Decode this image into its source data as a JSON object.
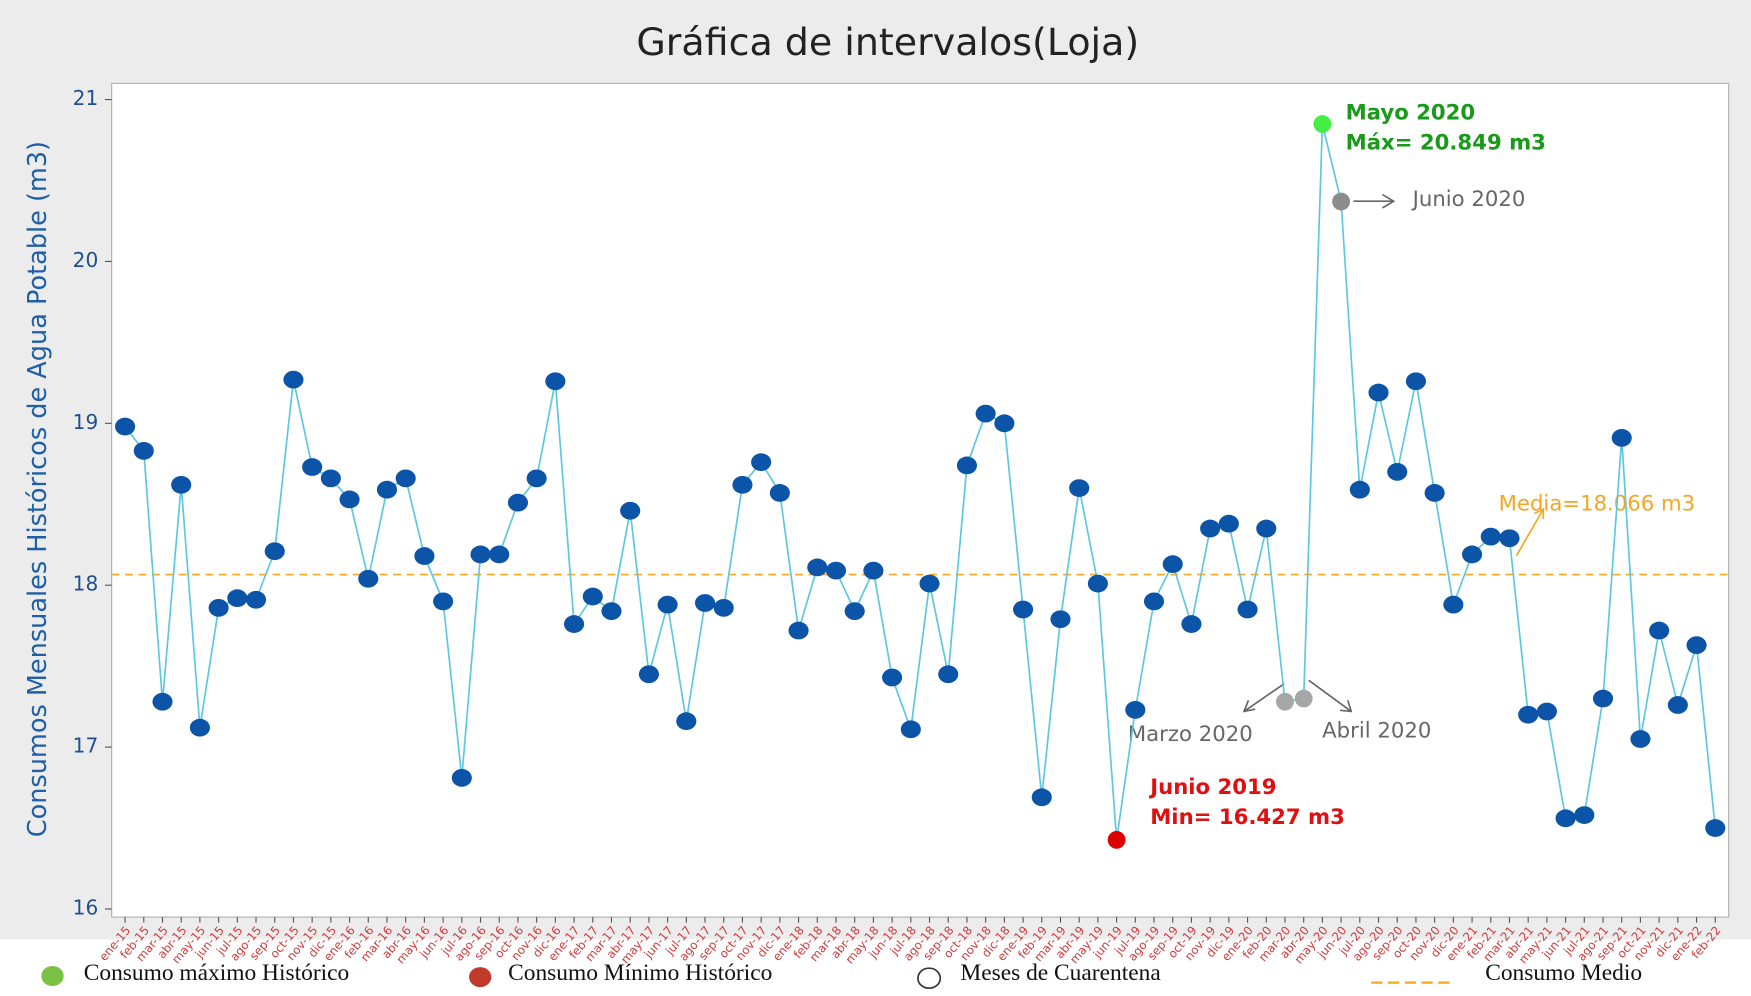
{
  "chart_data": {
    "type": "line",
    "title": "Gráfica de intervalos(Loja)",
    "y_label": "Consumos Mensuales Históricos de Agua Potable (m3)",
    "categories": [
      "ene-15",
      "feb-15",
      "mar-15",
      "abr-15",
      "may-15",
      "jun-15",
      "jul-15",
      "ago-15",
      "sep-15",
      "oct-15",
      "nov-15",
      "dic-15",
      "ene-16",
      "feb-16",
      "mar-16",
      "abr-16",
      "may-16",
      "jun-16",
      "jul-16",
      "ago-16",
      "sep-16",
      "oct-16",
      "nov-16",
      "dic-16",
      "ene-17",
      "feb-17",
      "mar-17",
      "abr-17",
      "may-17",
      "jun-17",
      "jul-17",
      "ago-17",
      "sep-17",
      "oct-17",
      "nov-17",
      "dic-17",
      "ene-18",
      "feb-18",
      "mar-18",
      "abr-18",
      "may-18",
      "jun-18",
      "jul-18",
      "ago-18",
      "sep-18",
      "oct-18",
      "nov-18",
      "dic-18",
      "ene-19",
      "feb-19",
      "mar-19",
      "abr-19",
      "may-19",
      "jun-19",
      "jul-19",
      "ago-19",
      "sep-19",
      "oct-19",
      "nov-19",
      "dic-19",
      "ene-20",
      "feb-20",
      "mar-20",
      "abr-20",
      "may-20",
      "jun-20",
      "jul-20",
      "ago-20",
      "sep-20",
      "oct-20",
      "nov-20",
      "dic-20",
      "ene-21",
      "feb-21",
      "mar-21",
      "abr-21",
      "may-21",
      "jun-21",
      "jul-21",
      "ago-21",
      "sep-21",
      "oct-21",
      "nov-21",
      "dic-21",
      "ene-22",
      "feb-22"
    ],
    "values": [
      18.98,
      18.83,
      17.28,
      18.62,
      17.12,
      17.86,
      17.92,
      17.91,
      18.21,
      19.27,
      18.73,
      18.66,
      18.53,
      18.04,
      18.59,
      18.66,
      18.18,
      17.9,
      16.81,
      18.19,
      18.19,
      18.51,
      18.66,
      19.26,
      17.76,
      17.93,
      17.84,
      18.46,
      17.45,
      17.88,
      17.16,
      17.89,
      17.86,
      18.62,
      18.76,
      18.57,
      17.72,
      18.11,
      18.09,
      17.84,
      18.09,
      17.43,
      17.11,
      18.01,
      17.45,
      18.74,
      19.06,
      19.0,
      17.85,
      16.69,
      17.79,
      18.6,
      18.01,
      16.427,
      17.23,
      17.9,
      18.13,
      17.76,
      18.35,
      18.38,
      17.85,
      18.35,
      17.28,
      17.3,
      20.849,
      20.37,
      18.59,
      19.19,
      18.7,
      19.26,
      18.57,
      17.88,
      18.19,
      18.3,
      18.29,
      17.2,
      17.22,
      16.56,
      16.58,
      17.3,
      18.91,
      17.05,
      17.72,
      17.26,
      17.63,
      16.5
    ],
    "line_color": "#5bc8e0",
    "marker_color": "#0b54a8",
    "highlights": [
      {
        "index": 64,
        "color": "#44ee44"
      },
      {
        "index": 53,
        "color": "#dd0000"
      },
      {
        "index": 62,
        "color": "#a6a6a6"
      },
      {
        "index": 63,
        "color": "#a6a6a6"
      },
      {
        "index": 65,
        "color": "#8c8c8c"
      }
    ],
    "mean": 18.066,
    "mean_color": "#f5a623",
    "ylim": [
      15.95,
      21.1
    ],
    "yticks": [
      16,
      17,
      18,
      19,
      20,
      21
    ],
    "annotations": {
      "max_month": "Mayo 2020",
      "max_value": "Máx= 20.849 m3",
      "min_month": "Junio 2019",
      "min_value": "Min= 16.427 m3",
      "june_2020": "Junio 2020",
      "march_2020": "Marzo 2020",
      "april_2020": "Abril 2020",
      "mean": "Media=18.066 m3"
    },
    "legend": [
      "Consumo máximo Histórico",
      "Consumo Mínimo Histórico",
      "Meses de Cuarentena",
      "Consumo Medio"
    ]
  }
}
